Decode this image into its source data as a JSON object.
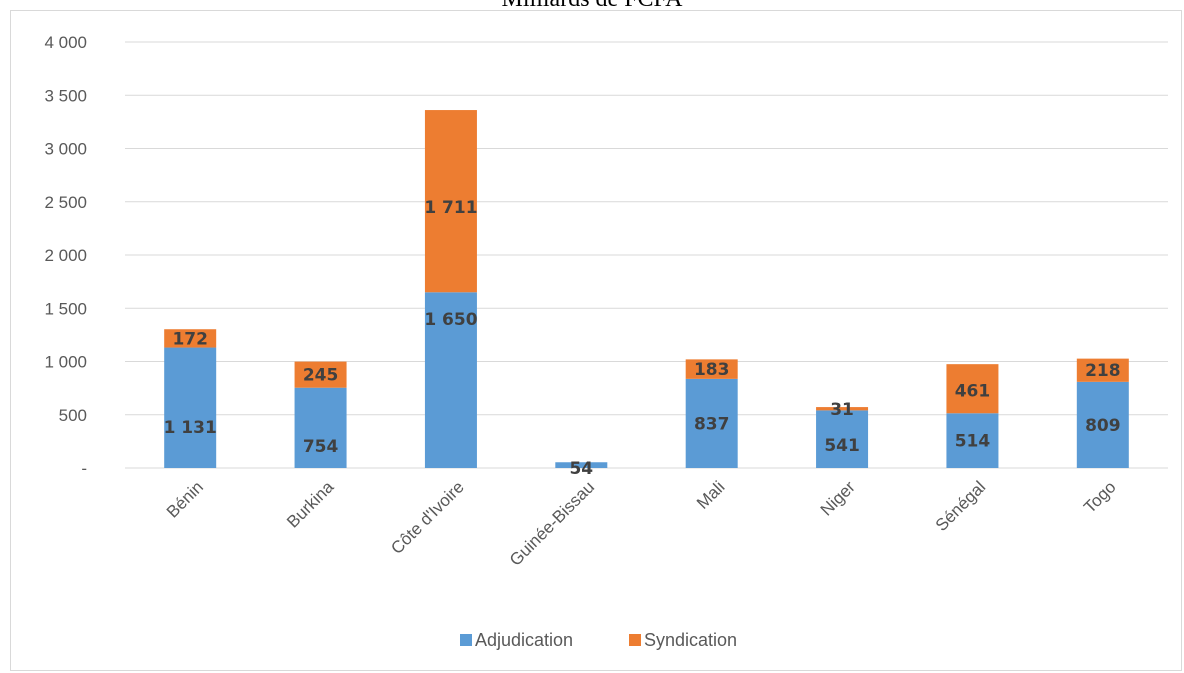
{
  "chart_data": {
    "type": "bar",
    "stacked": true,
    "title": "Milliards de FCFA",
    "categories": [
      "Bénin",
      "Burkina",
      "Côte d'Ivoire",
      "Guinée-Bissau",
      "Mali",
      "Niger",
      "Sénégal",
      "Togo"
    ],
    "series": [
      {
        "name": "Adjudication",
        "color": "#5b9bd5",
        "values": [
          1131,
          754,
          1650,
          54,
          837,
          541,
          514,
          809
        ],
        "labels": [
          "1 131",
          "754",
          "1 650",
          "54",
          "837",
          "541",
          "514",
          "809"
        ]
      },
      {
        "name": "Syndication",
        "color": "#ed7d31",
        "values": [
          172,
          245,
          1711,
          0,
          183,
          31,
          461,
          218
        ],
        "labels": [
          "172",
          "245",
          "1 711",
          "",
          "183",
          "31",
          "461",
          "218"
        ]
      }
    ],
    "ylim": [
      0,
      4000
    ],
    "yticks": [
      0,
      500,
      1000,
      1500,
      2000,
      2500,
      3000,
      3500,
      4000
    ],
    "ytick_labels": [
      "-",
      "500",
      "1 000",
      "1 500",
      "2 000",
      "2 500",
      "3 000",
      "3 500",
      "4 000"
    ],
    "grid": true,
    "legend_position": "bottom"
  }
}
